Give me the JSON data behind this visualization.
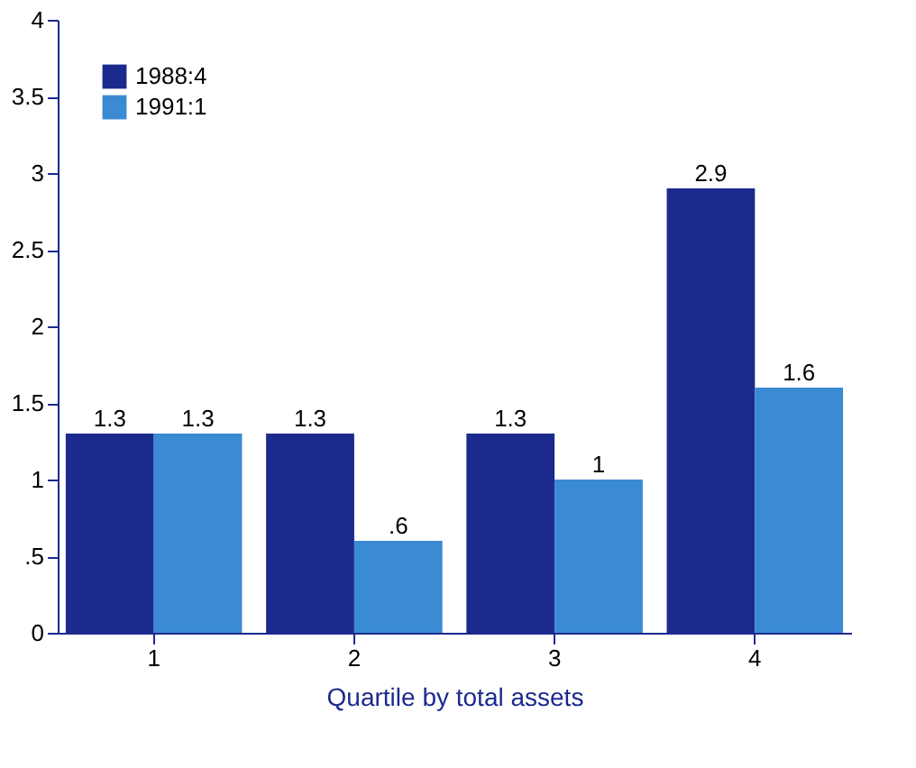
{
  "chart_data": {
    "type": "bar",
    "xlabel": "Quartile by total assets",
    "categories": [
      "1",
      "2",
      "3",
      "4"
    ],
    "series": [
      {
        "name": "1988:4",
        "color": "#1c2a8e",
        "values": [
          1.3,
          1.3,
          1.3,
          2.9
        ],
        "value_labels": [
          "1.3",
          "1.3",
          "1.3",
          "2.9"
        ]
      },
      {
        "name": "1991:1",
        "color": "#3a8ad4",
        "values": [
          1.3,
          0.6,
          1.0,
          1.6
        ],
        "value_labels": [
          "1.3",
          ".6",
          "1",
          "1.6"
        ]
      }
    ],
    "ylim": [
      0,
      4
    ],
    "yticks": [
      0,
      {
        "value": 0.5,
        "label": ".5"
      },
      1,
      1.5,
      2,
      2.5,
      3,
      3.5,
      4
    ],
    "grid": false,
    "legend": "top left"
  }
}
